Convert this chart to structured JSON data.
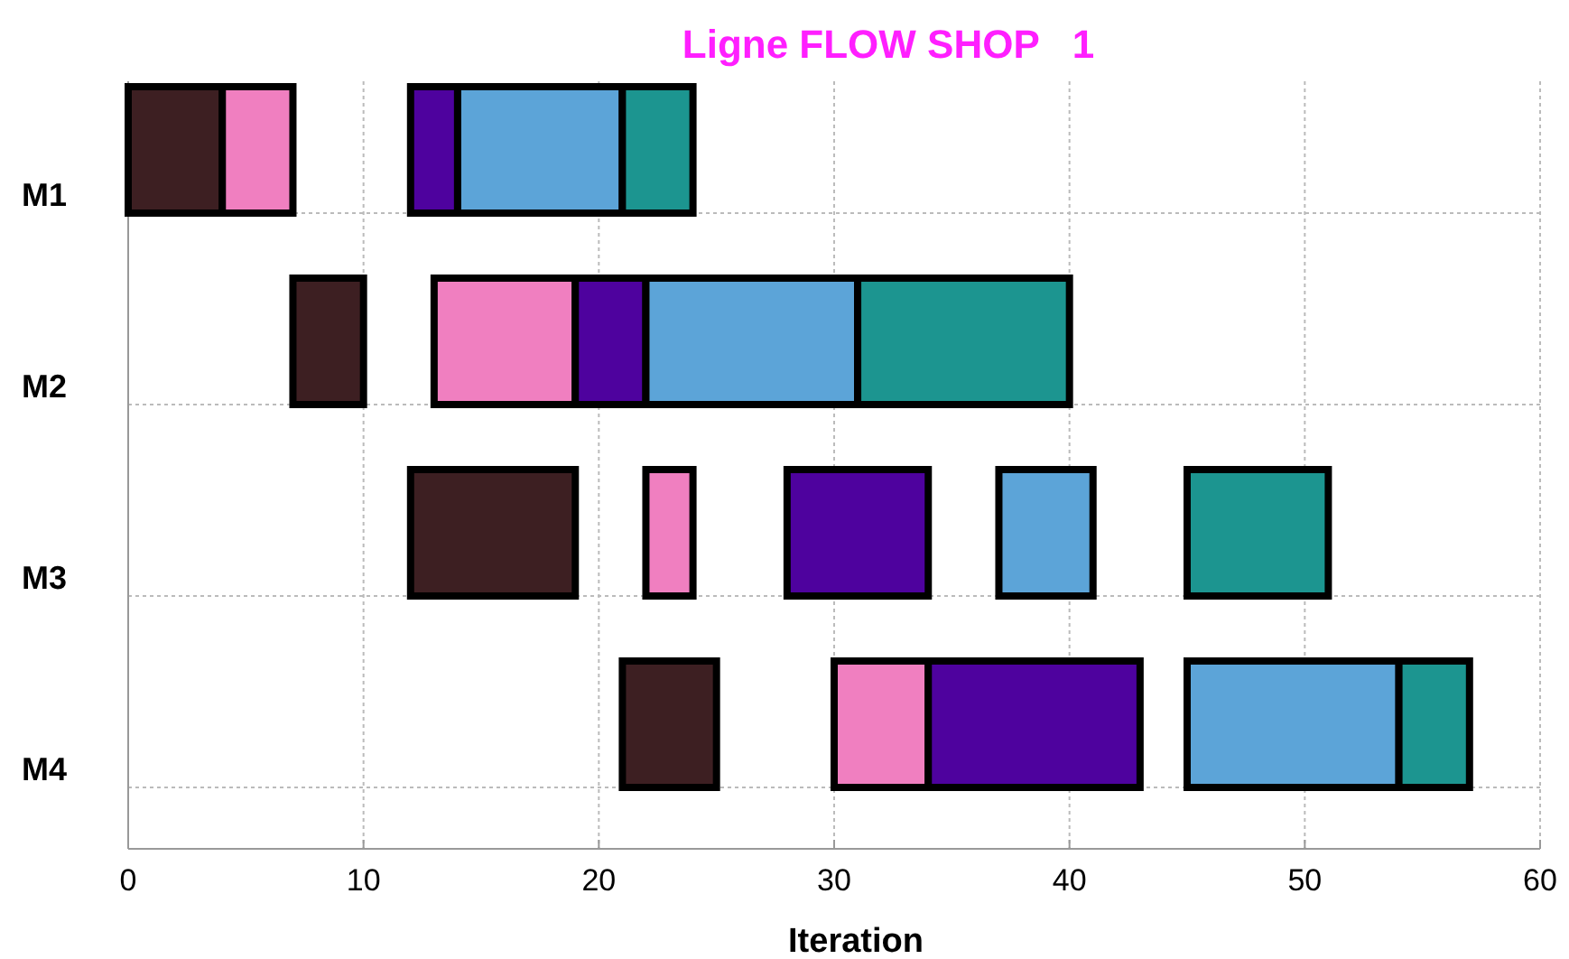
{
  "chart_data": {
    "type": "bar",
    "orientation": "horizontal",
    "title": "Ligne FLOW SHOP   1",
    "xlabel": "Iteration",
    "categories": [
      "M1",
      "M2",
      "M3",
      "M4"
    ],
    "xlim": [
      0,
      60
    ],
    "xticks": [
      0,
      10,
      20,
      30,
      40,
      50,
      60
    ],
    "grid": true,
    "series": [
      {
        "color": "#3d1f22",
        "base": [
          0,
          7,
          12,
          21
        ],
        "values": [
          4,
          3,
          7,
          4
        ]
      },
      {
        "color": "#f07fc0",
        "base": [
          4,
          13,
          22,
          30
        ],
        "values": [
          3,
          6,
          2,
          4
        ]
      },
      {
        "color": "#4e029e",
        "base": [
          12,
          19,
          28,
          34
        ],
        "values": [
          2,
          3,
          6,
          9
        ]
      },
      {
        "color": "#5ca4d8",
        "base": [
          14,
          22,
          37,
          45
        ],
        "values": [
          7,
          9,
          4,
          9
        ]
      },
      {
        "color": "#1c9590",
        "base": [
          21,
          31,
          45,
          54
        ],
        "values": [
          3,
          9,
          6,
          3
        ]
      }
    ]
  }
}
